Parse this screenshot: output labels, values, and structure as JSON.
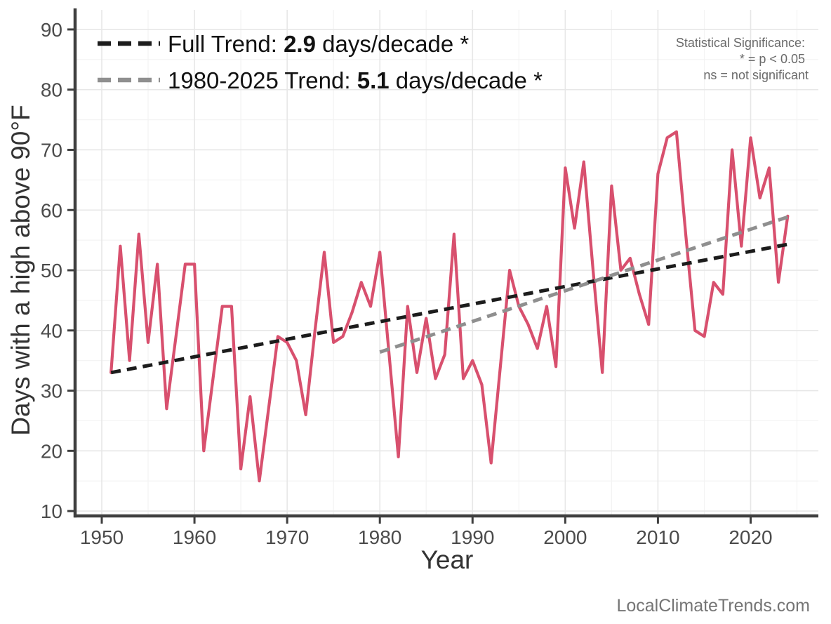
{
  "chart_data": {
    "type": "line",
    "title": "",
    "xlabel": "Year",
    "ylabel": "Days with a high above 90°F",
    "x_ticks": [
      1950,
      1960,
      1970,
      1980,
      1990,
      2000,
      2010,
      2020
    ],
    "y_ticks": [
      10,
      20,
      30,
      40,
      50,
      60,
      70,
      80,
      90
    ],
    "xlim": [
      1947.1,
      2027.3
    ],
    "ylim": [
      9.2,
      93.3
    ],
    "grid": {
      "major": true,
      "minor": true,
      "major_color": "#e7e7e7",
      "minor_color": "#f3f3f3"
    },
    "series": [
      {
        "name": "annual-days-above-90",
        "type": "line",
        "color": "#d8506e",
        "start_year": 1951,
        "end_year": 2024,
        "values": [
          33,
          54,
          35,
          56,
          38,
          51,
          27,
          39,
          51,
          51,
          20,
          32,
          44,
          44,
          17,
          29,
          15,
          27,
          39,
          38,
          35,
          26,
          40,
          53,
          38,
          39,
          43,
          48,
          44,
          53,
          36,
          19,
          44,
          33,
          42,
          32,
          36,
          56,
          32,
          35,
          31,
          18,
          34,
          50,
          44,
          41,
          37,
          44,
          34,
          67,
          57,
          68,
          50,
          33,
          64,
          50,
          52,
          46,
          41,
          66,
          72,
          73,
          56,
          40,
          39,
          48,
          46,
          70,
          54,
          72,
          62,
          67,
          48,
          59
        ]
      },
      {
        "name": "full-trend",
        "type": "trend-dashed",
        "color": "#1c1c1c",
        "rate_days_per_decade": 2.9,
        "significant": true,
        "x": [
          1951,
          2024
        ],
        "values": [
          33.0,
          54.3
        ]
      },
      {
        "name": "trend-1980-2025",
        "type": "trend-dashed",
        "color": "#8f8f8f",
        "rate_days_per_decade": 5.1,
        "significant": true,
        "x": [
          1980,
          2024.3
        ],
        "values": [
          36.4,
          59.0
        ]
      }
    ],
    "legend": {
      "position": "top-left",
      "entries": [
        {
          "prefix": "Full Trend: ",
          "value": "2.9",
          "suffix": " days/decade *",
          "color": "#1c1c1c"
        },
        {
          "prefix": "1980-2025 Trend: ",
          "value": "5.1",
          "suffix": " days/decade *",
          "color": "#8f8f8f"
        }
      ]
    },
    "notes": {
      "significance_title": "Statistical Significance:",
      "significance_line2": "* = p < 0.05",
      "significance_line3": "ns = not significant"
    },
    "watermark": "LocalClimateTrends.com"
  }
}
